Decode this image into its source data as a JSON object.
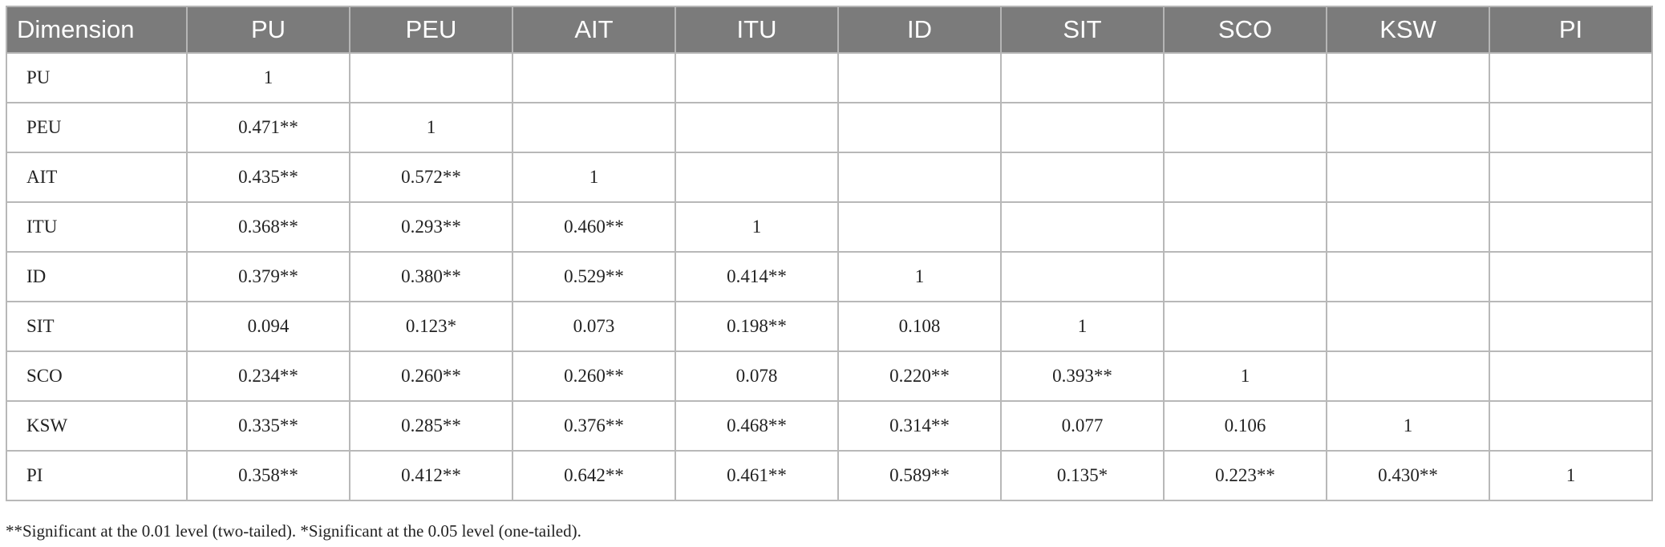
{
  "table": {
    "header": [
      "Dimension",
      "PU",
      "PEU",
      "AIT",
      "ITU",
      "ID",
      "SIT",
      "SCO",
      "KSW",
      "PI"
    ],
    "rows": [
      [
        "PU",
        "1"
      ],
      [
        "PEU",
        "0.471**",
        "1"
      ],
      [
        "AIT",
        "0.435**",
        "0.572**",
        "1"
      ],
      [
        "ITU",
        "0.368**",
        "0.293**",
        "0.460**",
        "1"
      ],
      [
        "ID",
        "0.379**",
        "0.380**",
        "0.529**",
        "0.414**",
        "1"
      ],
      [
        "SIT",
        "0.094",
        "0.123*",
        "0.073",
        "0.198**",
        "0.108",
        "1"
      ],
      [
        "SCO",
        "0.234**",
        "0.260**",
        "0.260**",
        "0.078",
        "0.220**",
        "0.393**",
        "1"
      ],
      [
        "KSW",
        "0.335**",
        "0.285**",
        "0.376**",
        "0.468**",
        "0.314**",
        "0.077",
        "0.106",
        "1"
      ],
      [
        "PI",
        "0.358**",
        "0.412**",
        "0.642**",
        "0.461**",
        "0.589**",
        "0.135*",
        "0.223**",
        "0.430**",
        "1"
      ]
    ]
  },
  "footnote": "**Significant at the 0.01 level (two-tailed). *Significant at the 0.05 level (one-tailed)."
}
